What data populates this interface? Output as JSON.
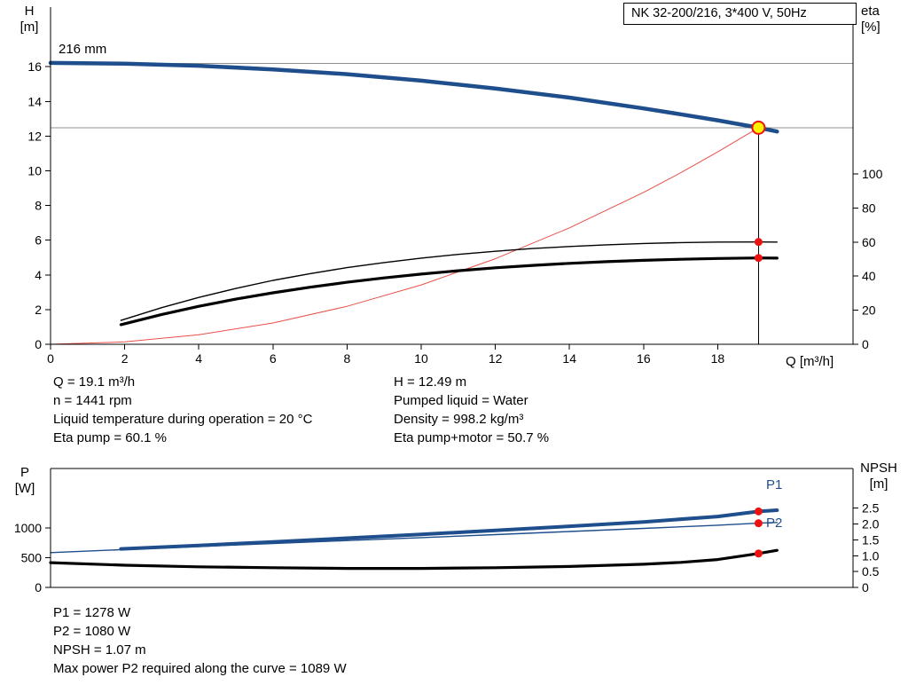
{
  "colors": {
    "blue": "#1f4e8c",
    "red": "#ee1111",
    "red_light": "#e85048",
    "gray": "#909090",
    "yellow": "#fff200",
    "black": "#000000"
  },
  "title_box": "NK 32-200/216, 3*400 V, 50Hz",
  "chart_data": [
    {
      "id": "top",
      "type": "line",
      "name": "pump-performance-curves",
      "title": "NK 32-200/216, 3*400 V, 50Hz",
      "impeller": "216 mm",
      "x_label": "Q [m³/h]",
      "x_range": [
        0,
        21.65
      ],
      "x_ticks": [
        [
          0,
          "0"
        ],
        [
          2,
          "2"
        ],
        [
          4,
          "4"
        ],
        [
          6,
          "6"
        ],
        [
          8,
          "8"
        ],
        [
          10,
          "10"
        ],
        [
          12,
          "12"
        ],
        [
          14,
          "14"
        ],
        [
          16,
          "16"
        ],
        [
          18,
          "18"
        ]
      ],
      "left_axis": {
        "label": [
          "H",
          "[m]"
        ],
        "range": [
          0,
          19.44
        ],
        "ticks": [
          [
            0,
            "0"
          ],
          [
            2,
            "2"
          ],
          [
            4,
            "4"
          ],
          [
            6,
            "6"
          ],
          [
            8,
            "8"
          ],
          [
            10,
            "10"
          ],
          [
            12,
            "12"
          ],
          [
            14,
            "14"
          ],
          [
            16,
            "16"
          ]
        ]
      },
      "right_axis": {
        "label": [
          "eta",
          "[%]"
        ],
        "range": [
          0,
          198
        ],
        "ticks": [
          [
            0,
            "0"
          ],
          [
            20,
            "20"
          ],
          [
            40,
            "40"
          ],
          [
            60,
            "60"
          ],
          [
            80,
            "80"
          ],
          [
            100,
            "100"
          ]
        ]
      },
      "ref_lines": [
        {
          "value": 16.2,
          "axis": "left"
        },
        {
          "value": 12.49,
          "axis": "left"
        }
      ],
      "duty_line": {
        "x": 19.1,
        "y": 12.49
      },
      "series": [
        {
          "name": "system-curve",
          "axis": "left",
          "color": "red_light",
          "width": 1,
          "points": [
            [
              0,
              0
            ],
            [
              2,
              0.14
            ],
            [
              4,
              0.55
            ],
            [
              6,
              1.23
            ],
            [
              8,
              2.19
            ],
            [
              10,
              3.42
            ],
            [
              12,
              4.93
            ],
            [
              14,
              6.71
            ],
            [
              16,
              8.76
            ],
            [
              17,
              9.89
            ],
            [
              18,
              11.09
            ],
            [
              19.1,
              12.49
            ]
          ]
        },
        {
          "name": "eta-pump",
          "axis": "right",
          "color": "black",
          "width": 1.4,
          "points": [
            [
              1.9,
              14
            ],
            [
              3,
              21.5
            ],
            [
              4,
              27.5
            ],
            [
              5,
              32.8
            ],
            [
              6,
              37.5
            ],
            [
              7,
              41.5
            ],
            [
              8,
              45
            ],
            [
              9,
              48
            ],
            [
              10,
              50.6
            ],
            [
              11,
              52.8
            ],
            [
              12,
              54.6
            ],
            [
              13,
              56.2
            ],
            [
              14,
              57.4
            ],
            [
              15,
              58.4
            ],
            [
              16,
              59.2
            ],
            [
              17,
              59.7
            ],
            [
              18,
              60
            ],
            [
              19.1,
              60.1
            ],
            [
              19.6,
              60
            ]
          ]
        },
        {
          "name": "eta-pump-motor",
          "axis": "right",
          "color": "black",
          "width": 3.2,
          "points": [
            [
              1.9,
              11.5
            ],
            [
              3,
              17.5
            ],
            [
              4,
              22.3
            ],
            [
              5,
              26.5
            ],
            [
              6,
              30.2
            ],
            [
              7,
              33.5
            ],
            [
              8,
              36.4
            ],
            [
              9,
              39
            ],
            [
              10,
              41.2
            ],
            [
              11,
              43.2
            ],
            [
              12,
              44.9
            ],
            [
              13,
              46.3
            ],
            [
              14,
              47.5
            ],
            [
              15,
              48.5
            ],
            [
              16,
              49.3
            ],
            [
              17,
              49.9
            ],
            [
              18,
              50.4
            ],
            [
              19.1,
              50.7
            ],
            [
              19.6,
              50.6
            ]
          ]
        },
        {
          "name": "head-curve",
          "axis": "left",
          "color": "blue",
          "width": 4.5,
          "points": [
            [
              0,
              16.22
            ],
            [
              2,
              16.18
            ],
            [
              4,
              16.06
            ],
            [
              6,
              15.85
            ],
            [
              8,
              15.57
            ],
            [
              10,
              15.2
            ],
            [
              12,
              14.75
            ],
            [
              14,
              14.22
            ],
            [
              16,
              13.6
            ],
            [
              17,
              13.26
            ],
            [
              18,
              12.91
            ],
            [
              19.1,
              12.49
            ],
            [
              19.6,
              12.27
            ]
          ]
        }
      ],
      "markers": [
        {
          "type": "duty",
          "x": 19.1,
          "y": 12.49,
          "axis": "left"
        },
        {
          "type": "dot",
          "x": 19.1,
          "y": 60.1,
          "axis": "right"
        },
        {
          "type": "dot",
          "x": 19.1,
          "y": 50.7,
          "axis": "right"
        }
      ]
    },
    {
      "id": "bottom",
      "type": "line",
      "name": "power-npsh-curves",
      "top_border": true,
      "x_range": [
        0,
        21.65
      ],
      "x_ticks": [],
      "left_axis": {
        "label": [
          "P",
          "[W]"
        ],
        "range": [
          0,
          2000
        ],
        "ticks": [
          [
            0,
            "0"
          ],
          [
            500,
            "500"
          ],
          [
            1000,
            "1000"
          ]
        ]
      },
      "right_axis": {
        "label": [
          "NPSH",
          "[m]"
        ],
        "range": [
          0,
          3.75
        ],
        "ticks": [
          [
            0,
            "0"
          ],
          [
            0.5,
            "0.5"
          ],
          [
            1,
            "1.0"
          ],
          [
            1.5,
            "1.5"
          ],
          [
            2,
            "2.0"
          ],
          [
            2.5,
            "2.5"
          ]
        ]
      },
      "legend": {
        "p1": "P1",
        "p2": "P2"
      },
      "series": [
        {
          "name": "p2-power",
          "axis": "left",
          "color": "blue",
          "width": 1.4,
          "points": [
            [
              0,
              585
            ],
            [
              2,
              637
            ],
            [
              4,
              688
            ],
            [
              6,
              738
            ],
            [
              8,
              788
            ],
            [
              10,
              838
            ],
            [
              12,
              888
            ],
            [
              14,
              940
            ],
            [
              16,
              992
            ],
            [
              18,
              1046
            ],
            [
              19.1,
              1080
            ],
            [
              19.6,
              1092
            ]
          ]
        },
        {
          "name": "p1-power",
          "axis": "left",
          "color": "blue",
          "width": 4,
          "points": [
            [
              1.9,
              648
            ],
            [
              4,
              706
            ],
            [
              6,
              766
            ],
            [
              8,
              828
            ],
            [
              10,
              892
            ],
            [
              12,
              958
            ],
            [
              14,
              1028
            ],
            [
              16,
              1102
            ],
            [
              18,
              1192
            ],
            [
              19.1,
              1278
            ],
            [
              19.6,
              1298
            ]
          ]
        },
        {
          "name": "npsh",
          "axis": "right",
          "color": "black",
          "width": 3.2,
          "points": [
            [
              0,
              0.78
            ],
            [
              2,
              0.7
            ],
            [
              4,
              0.65
            ],
            [
              6,
              0.62
            ],
            [
              8,
              0.6
            ],
            [
              10,
              0.6
            ],
            [
              12,
              0.62
            ],
            [
              14,
              0.66
            ],
            [
              16,
              0.73
            ],
            [
              17,
              0.79
            ],
            [
              18,
              0.88
            ],
            [
              19.1,
              1.07
            ],
            [
              19.6,
              1.17
            ]
          ]
        }
      ],
      "markers": [
        {
          "type": "dot",
          "x": 19.1,
          "y": 1278,
          "axis": "left"
        },
        {
          "type": "dot",
          "x": 19.1,
          "y": 1080,
          "axis": "left"
        },
        {
          "type": "dot",
          "x": 19.1,
          "y": 1.07,
          "axis": "right"
        }
      ]
    }
  ],
  "results": {
    "left_column": [
      "Q = 19.1 m³/h",
      "n = 1441 rpm",
      "Liquid temperature during operation = 20 °C",
      "Eta pump = 60.1 %"
    ],
    "right_column": [
      "H = 12.49 m",
      "Pumped liquid = Water",
      "Density = 998.2 kg/m³",
      "Eta pump+motor = 50.7 %"
    ]
  },
  "footer_lines": [
    "P1 = 1278 W",
    "P2 = 1080 W",
    "NPSH = 1.07 m",
    "Max power P2 required along the curve = 1089 W"
  ]
}
